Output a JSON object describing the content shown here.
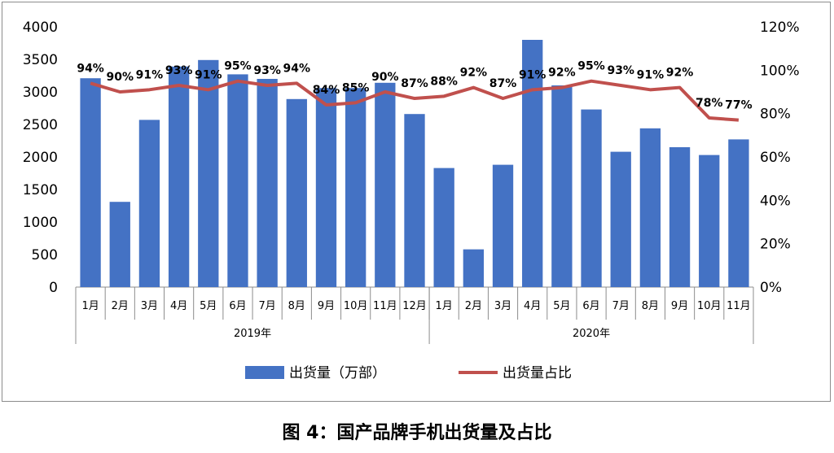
{
  "caption": "图 4：国产品牌手机出货量及占比",
  "chart_data": {
    "type": "bar",
    "categories": [
      "1月",
      "2月",
      "3月",
      "4月",
      "5月",
      "6月",
      "7月",
      "8月",
      "9月",
      "10月",
      "11月",
      "12月",
      "1月",
      "2月",
      "3月",
      "4月",
      "5月",
      "6月",
      "7月",
      "8月",
      "9月",
      "10月",
      "11月"
    ],
    "groups": [
      {
        "label": "2019年",
        "count": 12
      },
      {
        "label": "2020年",
        "count": 11
      }
    ],
    "series": [
      {
        "name": "出货量（万部）",
        "type": "bar",
        "axis": "left",
        "color": "#4472c4",
        "values": [
          3210,
          1310,
          2570,
          3390,
          3490,
          3270,
          3200,
          2890,
          3060,
          3060,
          3140,
          2660,
          1830,
          580,
          1880,
          3800,
          3100,
          2730,
          2080,
          2440,
          2150,
          2030,
          2270
        ]
      },
      {
        "name": "出货量占比",
        "type": "line",
        "axis": "right",
        "color": "#c0504d",
        "values": [
          94,
          90,
          91,
          93,
          91,
          95,
          93,
          94,
          84,
          85,
          90,
          87,
          88,
          92,
          87,
          91,
          92,
          95,
          93,
          91,
          92,
          78,
          77
        ],
        "labels": [
          "94%",
          "90%",
          "91%",
          "93%",
          "91%",
          "95%",
          "93%",
          "94%",
          "84%",
          "85%",
          "90%",
          "87%",
          "88%",
          "92%",
          "87%",
          "91%",
          "92%",
          "95%",
          "93%",
          "91%",
          "92%",
          "78%",
          "77%"
        ]
      }
    ],
    "y_left": {
      "min": 0,
      "max": 4000,
      "ticks": [
        "0",
        "500",
        "1000",
        "1500",
        "2000",
        "2500",
        "3000",
        "3500",
        "4000"
      ]
    },
    "y_right": {
      "min": 0,
      "max": 120,
      "ticks": [
        "0%",
        "20%",
        "40%",
        "60%",
        "80%",
        "100%",
        "120%"
      ]
    },
    "grid": false,
    "legend_position": "bottom"
  }
}
